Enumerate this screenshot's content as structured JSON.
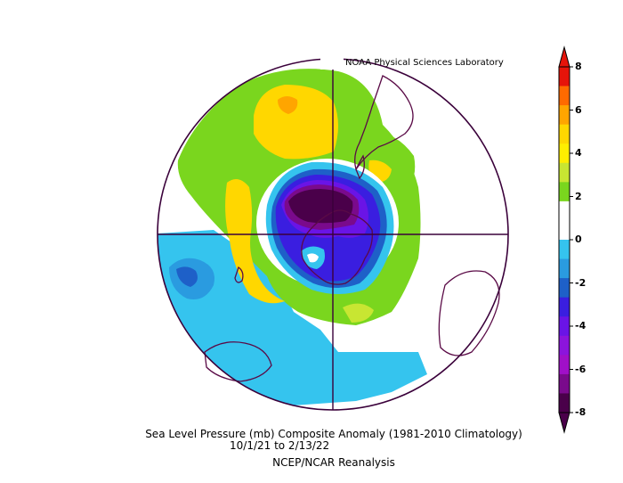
{
  "credit": "NOAA Physical Sciences Laboratory",
  "caption": {
    "line1": "Sea Level Pressure (mb) Composite Anomaly (1981-2010 Climatology)",
    "line2": "10/1/21   to 2/13/22",
    "line3": "NCEP/NCAR Reanalysis"
  },
  "colorbar": {
    "ticks": [
      "8",
      "6",
      "4",
      "2",
      "0",
      "-2",
      "-4",
      "-6",
      "-8"
    ],
    "colors": [
      "#e6140a",
      "#ff6a00",
      "#ffa500",
      "#ffd700",
      "#ffee00",
      "#c8e632",
      "#7ad61e",
      "#ffffff",
      "#ffffff",
      "#35c4ee",
      "#2a9be0",
      "#1e60c8",
      "#3a1ee0",
      "#6a14e6",
      "#8c14dc",
      "#a010c8",
      "#7a0a8c",
      "#4a004a"
    ]
  },
  "map": {
    "colors": {
      "dark_purple": "#4a004a",
      "purple": "#7a0a8c",
      "violet": "#6a14e6",
      "indigo": "#3a1ee0",
      "blue": "#1e60c8",
      "sky": "#35c4ee",
      "green": "#7ad61e",
      "yellow": "#ffd700",
      "orange": "#ffa500",
      "outline": "#5a0a46"
    }
  }
}
